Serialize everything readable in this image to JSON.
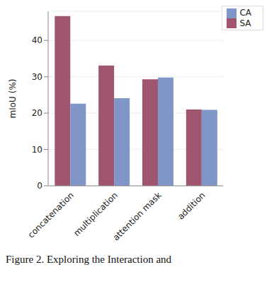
{
  "chart_data": {
    "type": "bar",
    "categories": [
      "concatenation",
      "multiplication",
      "attention mask",
      "addition"
    ],
    "series": [
      {
        "name": "SA",
        "color": "#a0566e",
        "values": [
          46.7,
          33.1,
          29.3,
          21.0
        ]
      },
      {
        "name": "CA",
        "color": "#8096c8",
        "values": [
          22.6,
          24.1,
          29.8,
          20.9
        ]
      }
    ],
    "y_label": "mIoU (%)",
    "ylim": [
      0,
      48
    ],
    "yticks": [
      0,
      10,
      20,
      30,
      40
    ],
    "grid": true,
    "legend": "upper right",
    "caption": "Figure 2. Exploring the Interaction and"
  }
}
